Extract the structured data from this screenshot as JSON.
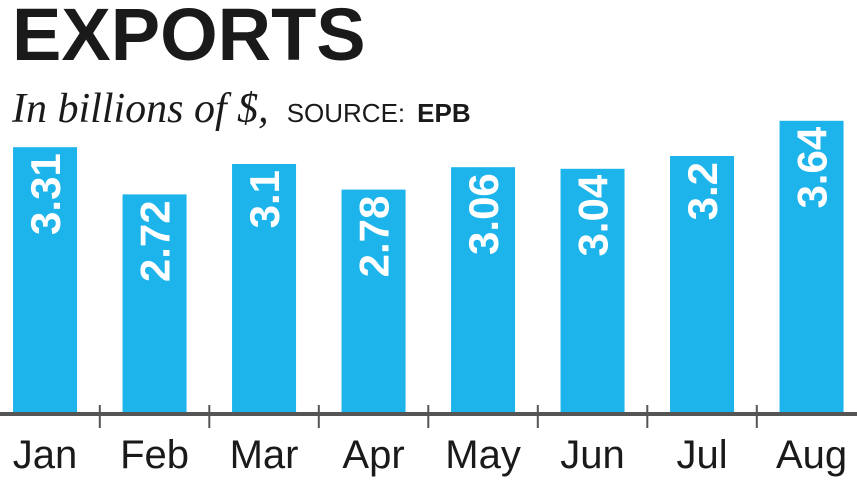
{
  "chart_data": {
    "type": "bar",
    "title": "EXPORTS",
    "subtitle": "In billions of $,",
    "source_label": "SOURCE:",
    "source": "EPB",
    "categories": [
      "Jan",
      "Feb",
      "Mar",
      "Apr",
      "May",
      "Jun",
      "Jul",
      "Aug"
    ],
    "values": [
      3.31,
      2.72,
      3.1,
      2.78,
      3.06,
      3.04,
      3.2,
      3.64
    ],
    "color": "#1cb4ea"
  }
}
